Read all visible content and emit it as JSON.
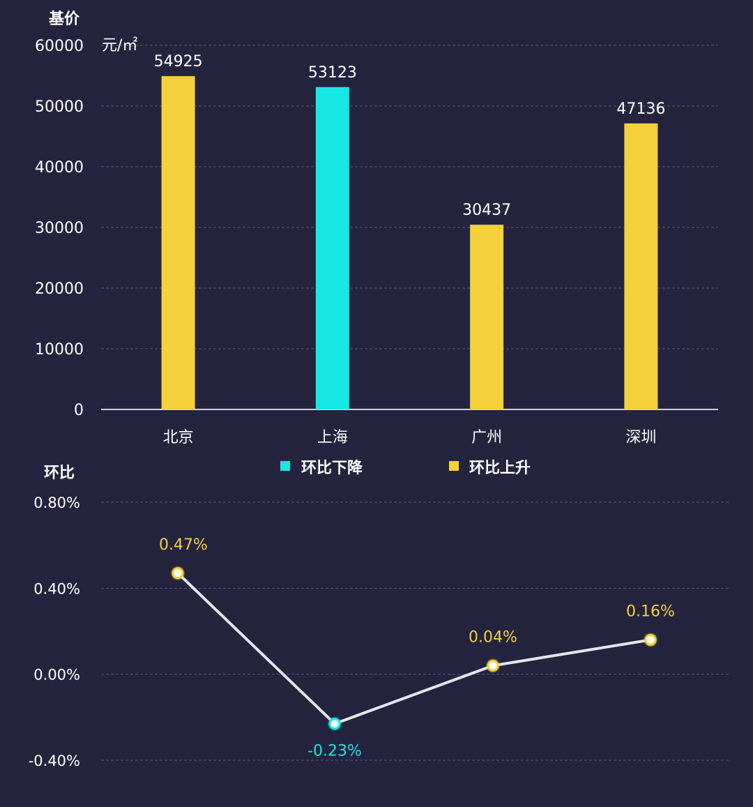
{
  "colors": {
    "background": "#24243f",
    "rise": "#f4d03a",
    "fall": "#16e7e4",
    "axis_text": "#ffffff",
    "grid": "#5a5a78",
    "line": "#e6e6ee"
  },
  "legend": {
    "fall_label": "环比下降",
    "rise_label": "环比上升"
  },
  "chart_data": [
    {
      "type": "bar",
      "title": "基价",
      "unit_label": "元/㎡",
      "categories": [
        "北京",
        "上海",
        "广州",
        "深圳"
      ],
      "values": [
        54925,
        53123,
        30437,
        47136
      ],
      "value_labels": [
        "54925",
        "53123",
        "30437",
        "47136"
      ],
      "trend": [
        "rise",
        "fall",
        "rise",
        "rise"
      ],
      "ylim": [
        0,
        60000
      ],
      "yticks": [
        0,
        10000,
        20000,
        30000,
        40000,
        50000,
        60000
      ],
      "ytick_labels": [
        "0",
        "10000",
        "20000",
        "30000",
        "40000",
        "50000",
        "60000"
      ],
      "grid": true
    },
    {
      "type": "line",
      "title": "环比",
      "categories": [
        "北京",
        "上海",
        "广州",
        "深圳"
      ],
      "values": [
        0.47,
        -0.23,
        0.04,
        0.16
      ],
      "value_labels": [
        "0.47%",
        "-0.23%",
        "0.04%",
        "0.16%"
      ],
      "trend": [
        "rise",
        "fall",
        "rise",
        "rise"
      ],
      "ylim": [
        -0.4,
        0.8
      ],
      "yticks": [
        -0.4,
        0.0,
        0.4,
        0.8
      ],
      "ytick_labels": [
        "-0.40%",
        "0.00%",
        "0.40%",
        "0.80%"
      ],
      "grid": true
    }
  ]
}
